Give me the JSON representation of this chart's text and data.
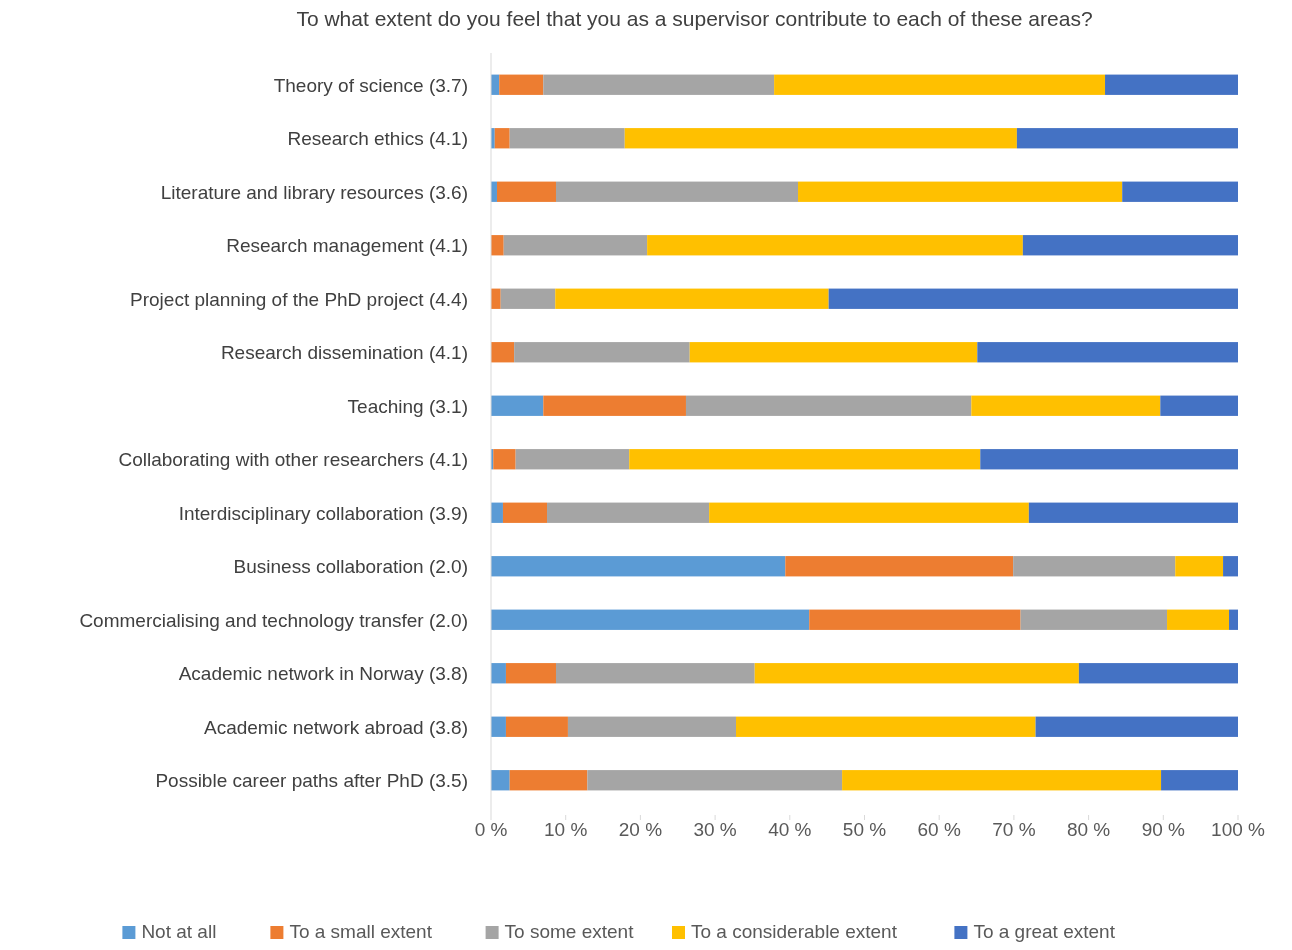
{
  "chart_data": {
    "type": "bar",
    "orientation": "horizontal",
    "stacked": true,
    "title": "To what extent do you feel that you as a supervisor contribute to each of these areas?",
    "categories": [
      "Theory of science (3.7)",
      "Research ethics (4.1)",
      "Literature and library resources (3.6)",
      "Research management (4.1)",
      "Project planning of the PhD project (4.4)",
      "Research dissemination (4.1)",
      "Teaching (3.1)",
      "Collaborating with other researchers (4.1)",
      "Interdisciplinary collaboration (3.9)",
      "Business collaboration (2.0)",
      "Commercialising and technology transfer (2.0)",
      "Academic network in Norway (3.8)",
      "Academic network abroad (3.8)",
      "Possible career paths after PhD (3.5)"
    ],
    "series": [
      {
        "name": "Not at all",
        "color": "#5b9bd5",
        "values": [
          1.1,
          0.5,
          0.8,
          0,
          0,
          0,
          7.0,
          0.3,
          1.6,
          39.4,
          42.6,
          2.0,
          2.0,
          2.5
        ]
      },
      {
        "name": "To a small extent",
        "color": "#ed7d31",
        "values": [
          5.9,
          2.0,
          7.9,
          1.7,
          1.3,
          3.1,
          19.1,
          3.0,
          5.9,
          30.5,
          28.3,
          6.7,
          8.3,
          10.4
        ]
      },
      {
        "name": "To some extent",
        "color": "#a5a5a5",
        "values": [
          30.9,
          15.4,
          32.4,
          19.2,
          7.3,
          23.5,
          38.2,
          15.2,
          21.7,
          21.7,
          19.6,
          26.6,
          22.5,
          34.1
        ]
      },
      {
        "name": "To a considerable extent",
        "color": "#ffc000",
        "values": [
          44.3,
          52.5,
          43.4,
          50.3,
          36.6,
          38.5,
          25.3,
          47.0,
          42.8,
          6.4,
          8.3,
          43.4,
          40.1,
          42.7
        ]
      },
      {
        "name": "To a great extent",
        "color": "#4472c4",
        "values": [
          17.8,
          29.6,
          15.5,
          28.8,
          54.8,
          34.9,
          10.4,
          34.5,
          28.0,
          2.0,
          1.2,
          21.3,
          27.1,
          10.3
        ]
      }
    ],
    "xlim": [
      0,
      100
    ],
    "xticks": [
      {
        "value": 0,
        "label": "0 %"
      },
      {
        "value": 10,
        "label": "10 %"
      },
      {
        "value": 20,
        "label": "20 %"
      },
      {
        "value": 30,
        "label": "30 %"
      },
      {
        "value": 40,
        "label": "40 %"
      },
      {
        "value": 50,
        "label": "50 %"
      },
      {
        "value": 60,
        "label": "60 %"
      },
      {
        "value": 70,
        "label": "70 %"
      },
      {
        "value": 80,
        "label": "80 %"
      },
      {
        "value": 90,
        "label": "90 %"
      },
      {
        "value": 100,
        "label": "100 %"
      }
    ],
    "legend": "bottom"
  }
}
